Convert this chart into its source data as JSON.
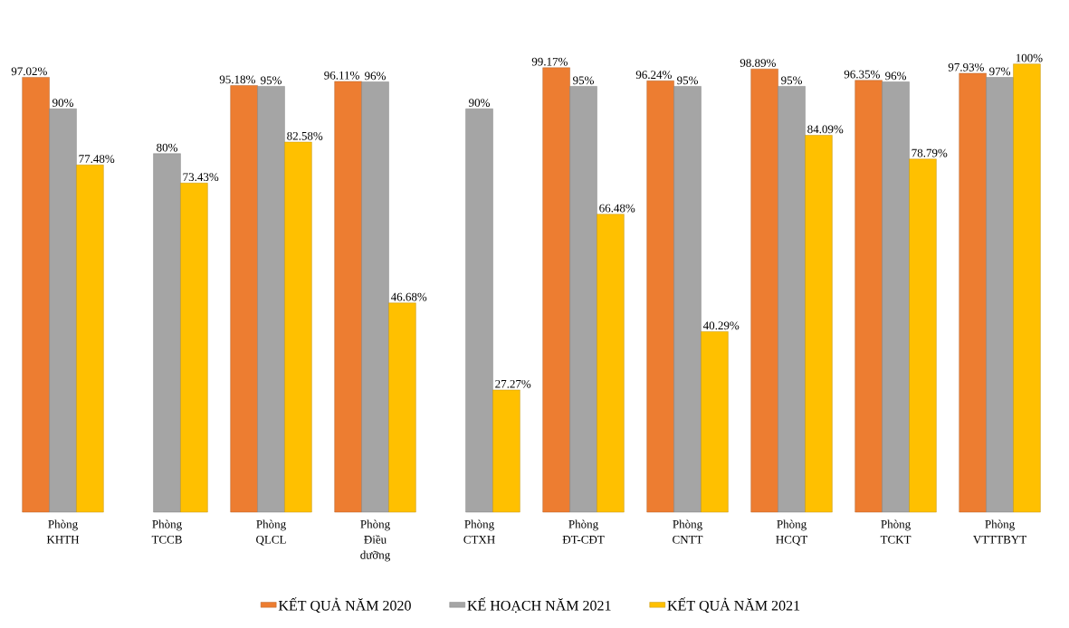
{
  "chart_data": {
    "type": "bar",
    "legend": "bottom",
    "categories": [
      "Phòng KHTH",
      "Phòng TCCB",
      "Phòng QLCL",
      "Phòng Điều dưỡng",
      "Phòng CTXH",
      "Phòng ĐT-CĐT",
      "Phòng CNTT",
      "Phòng HCQT",
      "Phòng TCKT",
      "Phòng VTTTBYT"
    ],
    "series": [
      {
        "name": "KẾT QUẢ NĂM 2020",
        "color": "#ed7d31",
        "values": [
          97.02,
          null,
          95.18,
          96.11,
          null,
          99.17,
          96.24,
          98.89,
          96.35,
          97.93
        ],
        "value_labels": [
          "97.02%",
          null,
          "95.18%",
          "96.11%",
          null,
          "99.17%",
          "96.24%",
          "98.89%",
          "96.35%",
          "97.93%"
        ]
      },
      {
        "name": "KẾ HOẠCH NĂM 2021",
        "color": "#a5a5a5",
        "values": [
          90,
          80,
          95,
          96,
          90,
          95,
          95,
          95,
          96,
          97
        ],
        "value_labels": [
          "90%",
          "80%",
          "95%",
          "96%",
          "90%",
          "95%",
          "95%",
          "95%",
          "96%",
          "97%"
        ]
      },
      {
        "name": "KẾT QUẢ NĂM 2021",
        "color": "#ffc000",
        "values": [
          77.48,
          73.43,
          82.58,
          46.68,
          27.27,
          66.48,
          40.29,
          84.09,
          78.79,
          100
        ],
        "value_labels": [
          "77.48%",
          "73.43%",
          "82.58%",
          "46.68%",
          "27.27%",
          "66.48%",
          "40.29%",
          "84.09%",
          "78.79%",
          "100%"
        ]
      }
    ]
  }
}
